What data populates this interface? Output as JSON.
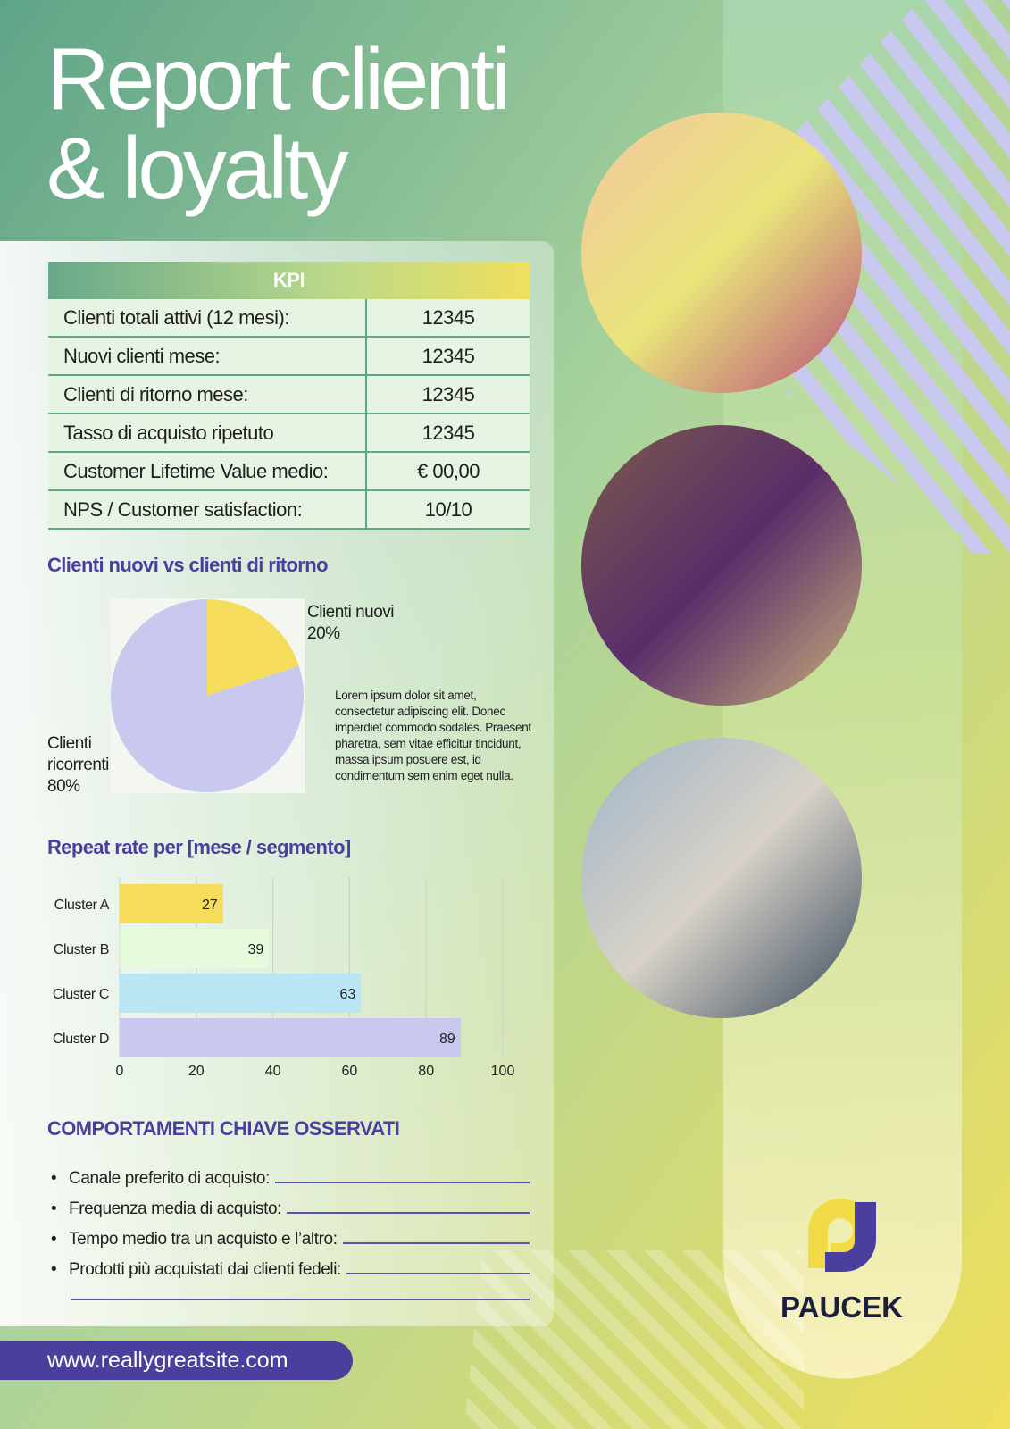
{
  "header": {
    "title": [
      "Report clienti",
      "& loyalty"
    ]
  },
  "kpi": {
    "title": "KPI",
    "rows": [
      [
        "Clienti totali attivi (12 mesi):",
        "12345"
      ],
      [
        "Nuovi clienti mese:",
        "12345"
      ],
      [
        "Clienti di ritorno mese:",
        "12345"
      ],
      [
        "Tasso di acquisto ripetuto",
        "12345"
      ],
      [
        "Customer Lifetime Value medio:",
        "€ 00,00"
      ],
      [
        "NPS / Customer satisfaction:",
        "10/10"
      ]
    ]
  },
  "chart_data": [
    {
      "type": "pie",
      "title": "Clienti nuovi vs clienti di ritorno",
      "categories": [
        "Clienti nuovi",
        "Clienti ricorrenti"
      ],
      "values": [
        20,
        80
      ],
      "value_labels": [
        "20%",
        "80%"
      ],
      "colors": [
        "#f5dc5a",
        "#c9c8ef"
      ]
    },
    {
      "type": "hbar",
      "title": "Repeat rate per [mese / segmento]",
      "categories": [
        "Cluster A",
        "Cluster B",
        "Cluster C",
        "Cluster D"
      ],
      "values": [
        27,
        39,
        63,
        89
      ],
      "colors": [
        "#f5dc5a",
        "#e6fadc",
        "#b9e6f3",
        "#c9c8ef"
      ],
      "xlim": [
        0,
        100
      ],
      "xticks": [
        0,
        20,
        40,
        60,
        80,
        100
      ],
      "grid": true
    }
  ],
  "pie_note": "Lorem ipsum dolor sit amet, consectetur adipiscing elit. Donec imperdiet commodo sodales. Praesent pharetra, sem vitae efficitur tincidunt, massa ipsum posuere est, id condimentum sem enim eget nulla.",
  "behaviors": {
    "title": "COMPORTAMENTI CHIAVE OSSERVATI",
    "items": [
      "Canale preferito di acquisto:",
      "Frequenza media di acquisto:",
      "Tempo medio tra un acquisto e l’altro:",
      "Prodotti più acquistati dai clienti fedeli:"
    ]
  },
  "footer": {
    "website": "www.reallygreatsite.com"
  },
  "logo": {
    "name": "PAUCEK"
  }
}
